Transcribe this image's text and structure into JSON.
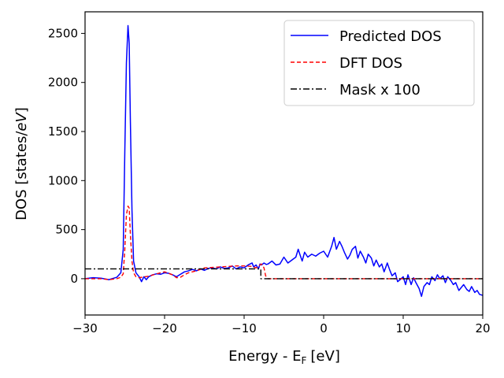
{
  "chart_data": {
    "type": "line",
    "title": "",
    "xlabel": "Energy - E",
    "xlabel_sub": "F",
    "xlabel_unit": "[eV]",
    "ylabel": "DOS [states/",
    "ylabel_italic": "eV",
    "ylabel_end": "]",
    "xlim": [
      -30,
      20
    ],
    "ylim": [
      -370,
      2720
    ],
    "xticks": [
      -30,
      -20,
      -10,
      0,
      10,
      20
    ],
    "xtick_labels": [
      "−30",
      "−20",
      "−10",
      "0",
      "10",
      "20"
    ],
    "yticks": [
      0,
      500,
      1000,
      1500,
      2000,
      2500
    ],
    "ytick_labels": [
      "0",
      "500",
      "1000",
      "1500",
      "2000",
      "2500"
    ],
    "legend_position": "top-right",
    "series": [
      {
        "name": "Predicted DOS",
        "color": "#0000ff",
        "style": "solid",
        "x": [
          -30,
          -29,
          -28,
          -27,
          -26,
          -25.5,
          -25.2,
          -25,
          -24.8,
          -24.6,
          -24.45,
          -24.3,
          -24.1,
          -23.9,
          -23.6,
          -23.2,
          -22.9,
          -22.6,
          -22.3,
          -22,
          -21.5,
          -21,
          -20.5,
          -20,
          -19.5,
          -19,
          -18.5,
          -18,
          -17.5,
          -17,
          -16.5,
          -16,
          -15.5,
          -15,
          -14.5,
          -14,
          -13.5,
          -13,
          -12.5,
          -12,
          -11.5,
          -11,
          -10.5,
          -10,
          -9.5,
          -9,
          -8.8,
          -8.5,
          -8.2,
          -8,
          -7.8,
          -7.5,
          -7.2,
          -7,
          -6.5,
          -6,
          -5.5,
          -5,
          -4.5,
          -4,
          -3.5,
          -3.2,
          -3,
          -2.7,
          -2.4,
          -2,
          -1.5,
          -1,
          -0.5,
          0,
          0.5,
          1,
          1.3,
          1.6,
          2,
          2.3,
          2.6,
          3,
          3.3,
          3.6,
          4,
          4.3,
          4.6,
          5,
          5.3,
          5.6,
          6,
          6.3,
          6.6,
          7,
          7.3,
          7.6,
          8,
          8.3,
          8.6,
          9,
          9.3,
          9.6,
          10,
          10.3,
          10.6,
          11,
          11.3,
          11.6,
          12,
          12.3,
          12.6,
          13,
          13.3,
          13.6,
          14,
          14.3,
          14.6,
          15,
          15.3,
          15.6,
          16,
          16.3,
          16.6,
          17,
          17.3,
          17.6,
          18,
          18.3,
          18.6,
          19,
          19.3,
          19.6,
          20
        ],
        "y": [
          0,
          10,
          5,
          -10,
          15,
          60,
          300,
          1300,
          2200,
          2580,
          2400,
          1600,
          700,
          180,
          60,
          20,
          -30,
          20,
          -10,
          20,
          40,
          50,
          45,
          60,
          55,
          40,
          20,
          45,
          70,
          80,
          95,
          80,
          100,
          85,
          105,
          110,
          100,
          120,
          105,
          110,
          130,
          100,
          120,
          110,
          140,
          160,
          120,
          140,
          100,
          150,
          140,
          160,
          145,
          150,
          180,
          140,
          150,
          220,
          160,
          190,
          220,
          300,
          250,
          180,
          270,
          220,
          250,
          230,
          260,
          280,
          220,
          330,
          420,
          300,
          380,
          330,
          270,
          200,
          240,
          300,
          330,
          210,
          280,
          220,
          160,
          250,
          210,
          130,
          190,
          120,
          150,
          70,
          160,
          90,
          30,
          60,
          -30,
          -10,
          20,
          -60,
          40,
          -60,
          10,
          -40,
          -100,
          -180,
          -80,
          -40,
          -60,
          20,
          -20,
          40,
          0,
          30,
          -40,
          20,
          -20,
          -60,
          -40,
          -120,
          -90,
          -60,
          -110,
          -130,
          -80,
          -140,
          -120,
          -160,
          -170
        ]
      },
      {
        "name": "DFT DOS",
        "color": "#ff0000",
        "style": "dashed",
        "x": [
          -30,
          -28,
          -27,
          -26,
          -25.5,
          -25.2,
          -25,
          -24.8,
          -24.6,
          -24.45,
          -24.3,
          -24.1,
          -23.9,
          -23.6,
          -23.2,
          -22.5,
          -22,
          -21,
          -20,
          -19,
          -18.5,
          -18,
          -17.5,
          -17,
          -16,
          -15,
          -14,
          -13,
          -12,
          -11,
          -10,
          -9,
          -8.5,
          -8,
          -7.8,
          -7.5,
          -7.3,
          -7,
          -6.5,
          -6,
          -5,
          -4,
          -2,
          0,
          5,
          10,
          15,
          20
        ],
        "y": [
          0,
          0,
          -10,
          0,
          15,
          50,
          300,
          650,
          740,
          720,
          450,
          180,
          60,
          20,
          10,
          20,
          25,
          50,
          70,
          40,
          10,
          15,
          40,
          60,
          80,
          110,
          115,
          120,
          125,
          130,
          130,
          125,
          110,
          140,
          150,
          110,
          30,
          0,
          0,
          0,
          0,
          0,
          0,
          0,
          0,
          0,
          0,
          0
        ]
      },
      {
        "name": "Mask x 100",
        "color": "#000000",
        "style": "dashdot",
        "x": [
          -30,
          -7.9,
          -7.9,
          -7.5,
          20
        ],
        "y": [
          100,
          100,
          0,
          0,
          0
        ]
      }
    ]
  }
}
